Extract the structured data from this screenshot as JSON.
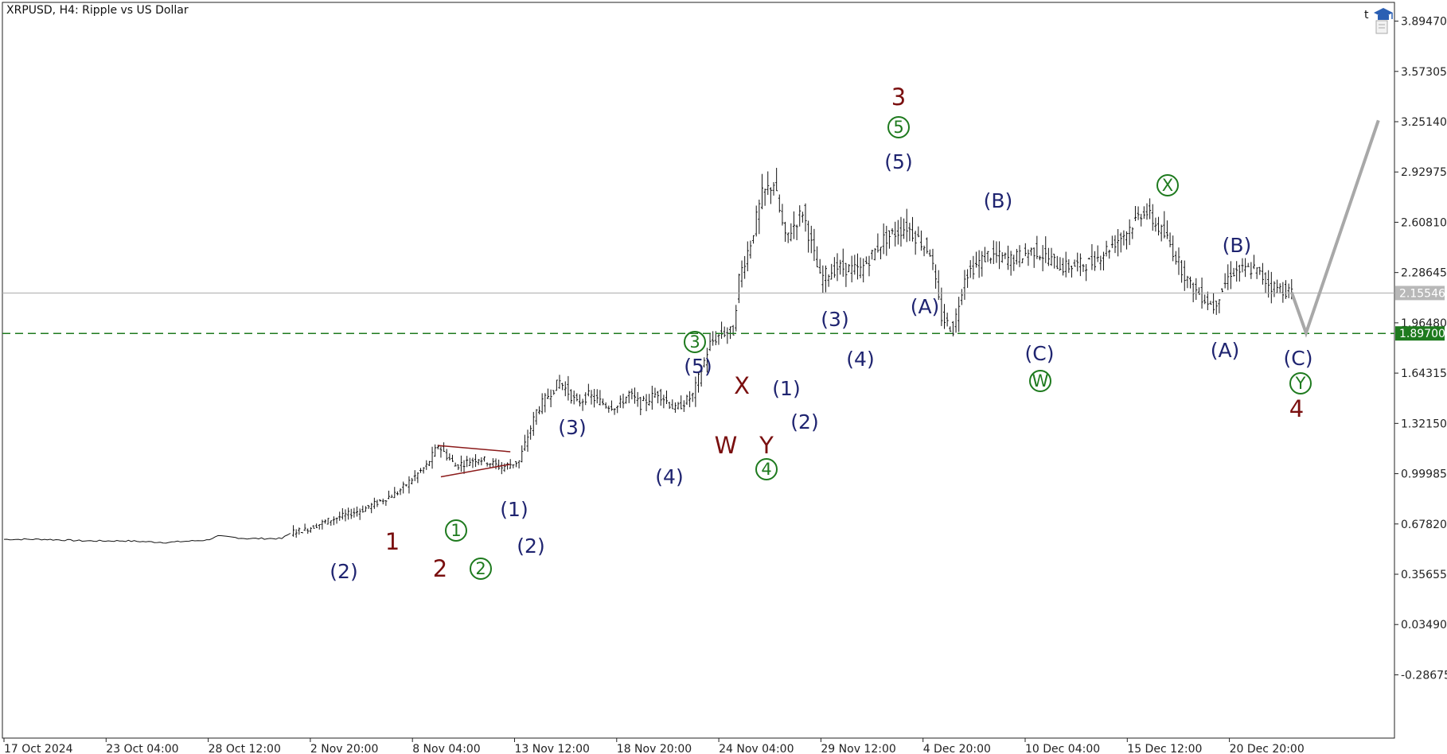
{
  "header": {
    "title": "XRPUSD, H4:  Ripple vs US Dollar",
    "corner_letter": "t",
    "hat_icon": "graduation-cap-icon",
    "doc_icon": "document-icon"
  },
  "colors": {
    "background": "#ffffff",
    "price_line": "#aaaaaa",
    "level_line": "#1e7a1e",
    "projection": "#a8a8a8",
    "triangle": "#8b1a1a",
    "wave_blue": "#1f2470",
    "wave_red": "#7a0f0f",
    "wave_green": "#1e7a1e"
  },
  "chart_data": {
    "type": "candlestick",
    "symbol": "XRPUSD",
    "timeframe": "H4",
    "ylim": [
      -0.5,
      4.05
    ],
    "y_ticks": [
      "3.89470",
      "3.57305",
      "3.25140",
      "2.92975",
      "2.60810",
      "2.28645",
      "1.96480",
      "1.64315",
      "1.32150",
      "0.99985",
      "0.67820",
      "0.35655",
      "0.03490",
      "-0.28675"
    ],
    "x_ticks": [
      "17 Oct 2024",
      "23 Oct 04:00",
      "28 Oct 12:00",
      "2 Nov 20:00",
      "8 Nov 04:00",
      "13 Nov 12:00",
      "18 Nov 20:00",
      "24 Nov 04:00",
      "29 Nov 12:00",
      "4 Dec 20:00",
      "10 Dec 04:00",
      "15 Dec 12:00",
      "20 Dec 20:00"
    ],
    "current_price": {
      "label": "2.15546",
      "value": 2.15546
    },
    "level": {
      "label": "1.89700",
      "value": 1.897
    },
    "price_path": [
      [
        0,
        0.58
      ],
      [
        14,
        0.58
      ],
      [
        28,
        0.57
      ],
      [
        42,
        0.57
      ],
      [
        56,
        0.56
      ],
      [
        70,
        0.575
      ],
      [
        74,
        0.6
      ],
      [
        84,
        0.585
      ],
      [
        96,
        0.585
      ],
      [
        100,
        0.63
      ],
      [
        104,
        0.64
      ],
      [
        112,
        0.7
      ],
      [
        124,
        0.77
      ],
      [
        136,
        0.88
      ],
      [
        146,
        1.05
      ],
      [
        150,
        1.18
      ],
      [
        156,
        1.05
      ],
      [
        164,
        1.1
      ],
      [
        172,
        1.04
      ],
      [
        178,
        1.08
      ],
      [
        184,
        1.4
      ],
      [
        188,
        1.5
      ],
      [
        192,
        1.59
      ],
      [
        198,
        1.45
      ],
      [
        202,
        1.5
      ],
      [
        208,
        1.44
      ],
      [
        212,
        1.43
      ],
      [
        216,
        1.51
      ],
      [
        220,
        1.44
      ],
      [
        226,
        1.52
      ],
      [
        232,
        1.41
      ],
      [
        238,
        1.5
      ],
      [
        244,
        1.83
      ],
      [
        248,
        1.9
      ],
      [
        252,
        1.91
      ],
      [
        254,
        2.25
      ],
      [
        258,
        2.48
      ],
      [
        262,
        2.78
      ],
      [
        266,
        2.86
      ],
      [
        270,
        2.5
      ],
      [
        276,
        2.68
      ],
      [
        282,
        2.25
      ],
      [
        288,
        2.32
      ],
      [
        296,
        2.3
      ],
      [
        304,
        2.5
      ],
      [
        312,
        2.58
      ],
      [
        320,
        2.42
      ],
      [
        324,
        2.0
      ],
      [
        328,
        1.92
      ],
      [
        332,
        2.27
      ],
      [
        340,
        2.4
      ],
      [
        348,
        2.37
      ],
      [
        356,
        2.43
      ],
      [
        366,
        2.32
      ],
      [
        376,
        2.35
      ],
      [
        388,
        2.55
      ],
      [
        394,
        2.69
      ],
      [
        402,
        2.5
      ],
      [
        410,
        2.2
      ],
      [
        418,
        2.07
      ],
      [
        424,
        2.29
      ],
      [
        432,
        2.31
      ],
      [
        438,
        2.2
      ],
      [
        445,
        2.16
      ]
    ],
    "projection": [
      [
        445,
        2.16
      ],
      [
        450,
        1.9
      ],
      [
        475,
        3.26
      ]
    ],
    "triangle": {
      "apex": [
        175,
        1.06
      ],
      "upper": [
        [
          150,
          1.18
        ],
        [
          175,
          1.14
        ]
      ],
      "lower": [
        [
          151,
          0.98
        ],
        [
          175,
          1.06
        ]
      ]
    },
    "wave_labels": {
      "blue": [
        "(2)",
        "(1)",
        "(2)",
        "(3)",
        "(4)",
        "(5)",
        "(1)",
        "(2)",
        "(3)",
        "(4)",
        "(5)",
        "(A)",
        "(B)",
        "(C)",
        "(A)",
        "(B)",
        "(C)"
      ],
      "red": [
        "1",
        "2",
        "3",
        "W",
        "X",
        "Y",
        "4"
      ],
      "green": [
        "1",
        "2",
        "3",
        "4",
        "5",
        "W",
        "X",
        "Y"
      ]
    }
  }
}
